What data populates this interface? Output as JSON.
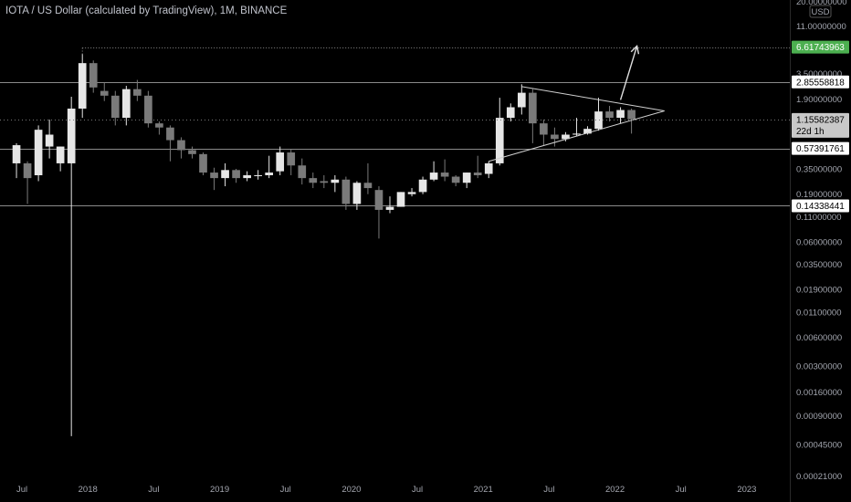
{
  "header": {
    "title": "IOTA / US Dollar (calculated by TradingView), 1M, BINANCE",
    "currency_badge": "USD"
  },
  "colors": {
    "background": "#000000",
    "candle_up": "#e6e6e6",
    "candle_down": "#7a7a7a",
    "level_line": "#8a8a8a",
    "target_tag": "#4caf50",
    "current_tag": "#c8c8c8"
  },
  "chart_data": {
    "type": "candlestick",
    "y_scale": "log",
    "ylim": [
      0.00021,
      20.0
    ],
    "y_ticks": [
      "20.00000000",
      "11.00000000",
      "6.60000000",
      "3.50000000",
      "1.90000000",
      "0.60000000",
      "0.35000000",
      "0.19000000",
      "0.11000000",
      "0.06000000",
      "0.03500000",
      "0.01900000",
      "0.01100000",
      "0.00600000",
      "0.00300000",
      "0.00160000",
      "0.00090000",
      "0.00045000",
      "0.00021000"
    ],
    "x_ticks": [
      "Jul",
      "2018",
      "Jul",
      "2019",
      "Jul",
      "2020",
      "Jul",
      "2021",
      "Jul",
      "2022",
      "Jul",
      "2023"
    ],
    "x_tick_dates": [
      "2017-07",
      "2018-01",
      "2018-07",
      "2019-01",
      "2019-07",
      "2020-01",
      "2020-07",
      "2021-01",
      "2021-07",
      "2022-01",
      "2022-07",
      "2023-01"
    ],
    "x_range": [
      "2017-05",
      "2023-04"
    ],
    "candles": [
      {
        "date": "2017-06",
        "o": 0.4,
        "h": 0.65,
        "l": 0.28,
        "c": 0.62
      },
      {
        "date": "2017-07",
        "o": 0.4,
        "h": 0.42,
        "l": 0.15,
        "c": 0.28
      },
      {
        "date": "2017-08",
        "o": 0.3,
        "h": 1.0,
        "l": 0.26,
        "c": 0.9
      },
      {
        "date": "2017-09",
        "o": 0.6,
        "h": 1.15,
        "l": 0.45,
        "c": 0.8
      },
      {
        "date": "2017-10",
        "o": 0.4,
        "h": 0.6,
        "l": 0.33,
        "c": 0.6
      },
      {
        "date": "2017-11",
        "o": 0.4,
        "h": 2.0,
        "l": 0.00055,
        "c": 1.5
      },
      {
        "date": "2017-12",
        "o": 1.5,
        "h": 5.6,
        "l": 1.2,
        "c": 4.5
      },
      {
        "date": "2018-01",
        "o": 4.5,
        "h": 4.8,
        "l": 2.2,
        "c": 2.5
      },
      {
        "date": "2018-02",
        "o": 2.3,
        "h": 2.8,
        "l": 1.8,
        "c": 2.05
      },
      {
        "date": "2018-03",
        "o": 2.05,
        "h": 2.3,
        "l": 1.0,
        "c": 1.2
      },
      {
        "date": "2018-04",
        "o": 1.2,
        "h": 2.6,
        "l": 1.0,
        "c": 2.4
      },
      {
        "date": "2018-05",
        "o": 2.4,
        "h": 3.0,
        "l": 1.8,
        "c": 2.05
      },
      {
        "date": "2018-06",
        "o": 2.05,
        "h": 2.3,
        "l": 0.95,
        "c": 1.05
      },
      {
        "date": "2018-07",
        "o": 1.05,
        "h": 1.1,
        "l": 0.8,
        "c": 0.95
      },
      {
        "date": "2018-08",
        "o": 0.95,
        "h": 1.0,
        "l": 0.42,
        "c": 0.7
      },
      {
        "date": "2018-09",
        "o": 0.7,
        "h": 0.75,
        "l": 0.45,
        "c": 0.55
      },
      {
        "date": "2018-10",
        "o": 0.55,
        "h": 0.6,
        "l": 0.45,
        "c": 0.5
      },
      {
        "date": "2018-11",
        "o": 0.5,
        "h": 0.52,
        "l": 0.3,
        "c": 0.32
      },
      {
        "date": "2018-12",
        "o": 0.32,
        "h": 0.36,
        "l": 0.21,
        "c": 0.28
      },
      {
        "date": "2019-01",
        "o": 0.28,
        "h": 0.4,
        "l": 0.23,
        "c": 0.34
      },
      {
        "date": "2019-02",
        "o": 0.34,
        "h": 0.35,
        "l": 0.25,
        "c": 0.28
      },
      {
        "date": "2019-03",
        "o": 0.28,
        "h": 0.33,
        "l": 0.26,
        "c": 0.3
      },
      {
        "date": "2019-04",
        "o": 0.3,
        "h": 0.34,
        "l": 0.27,
        "c": 0.3
      },
      {
        "date": "2019-05",
        "o": 0.3,
        "h": 0.48,
        "l": 0.28,
        "c": 0.32
      },
      {
        "date": "2019-06",
        "o": 0.33,
        "h": 0.6,
        "l": 0.3,
        "c": 0.52
      },
      {
        "date": "2019-07",
        "o": 0.52,
        "h": 0.56,
        "l": 0.3,
        "c": 0.38
      },
      {
        "date": "2019-08",
        "o": 0.38,
        "h": 0.45,
        "l": 0.24,
        "c": 0.28
      },
      {
        "date": "2019-09",
        "o": 0.28,
        "h": 0.32,
        "l": 0.22,
        "c": 0.25
      },
      {
        "date": "2019-10",
        "o": 0.26,
        "h": 0.3,
        "l": 0.22,
        "c": 0.25
      },
      {
        "date": "2019-11",
        "o": 0.25,
        "h": 0.3,
        "l": 0.2,
        "c": 0.27
      },
      {
        "date": "2019-12",
        "o": 0.27,
        "h": 0.29,
        "l": 0.13,
        "c": 0.15
      },
      {
        "date": "2020-01",
        "o": 0.15,
        "h": 0.26,
        "l": 0.13,
        "c": 0.25
      },
      {
        "date": "2020-02",
        "o": 0.25,
        "h": 0.4,
        "l": 0.19,
        "c": 0.22
      },
      {
        "date": "2020-03",
        "o": 0.21,
        "h": 0.23,
        "l": 0.065,
        "c": 0.13
      },
      {
        "date": "2020-04",
        "o": 0.13,
        "h": 0.18,
        "l": 0.12,
        "c": 0.14
      },
      {
        "date": "2020-05",
        "o": 0.14,
        "h": 0.2,
        "l": 0.14,
        "c": 0.2
      },
      {
        "date": "2020-06",
        "o": 0.19,
        "h": 0.22,
        "l": 0.18,
        "c": 0.2
      },
      {
        "date": "2020-07",
        "o": 0.2,
        "h": 0.29,
        "l": 0.19,
        "c": 0.27
      },
      {
        "date": "2020-08",
        "o": 0.27,
        "h": 0.42,
        "l": 0.26,
        "c": 0.32
      },
      {
        "date": "2020-09",
        "o": 0.32,
        "h": 0.44,
        "l": 0.26,
        "c": 0.29
      },
      {
        "date": "2020-10",
        "o": 0.29,
        "h": 0.3,
        "l": 0.23,
        "c": 0.25
      },
      {
        "date": "2020-11",
        "o": 0.25,
        "h": 0.32,
        "l": 0.22,
        "c": 0.32
      },
      {
        "date": "2020-12",
        "o": 0.32,
        "h": 0.48,
        "l": 0.28,
        "c": 0.3
      },
      {
        "date": "2021-01",
        "o": 0.31,
        "h": 0.42,
        "l": 0.28,
        "c": 0.4
      },
      {
        "date": "2021-02",
        "o": 0.4,
        "h": 1.95,
        "l": 0.38,
        "c": 1.2
      },
      {
        "date": "2021-03",
        "o": 1.2,
        "h": 1.7,
        "l": 1.1,
        "c": 1.55
      },
      {
        "date": "2021-04",
        "o": 1.55,
        "h": 2.7,
        "l": 1.3,
        "c": 2.2
      },
      {
        "date": "2021-05",
        "o": 2.2,
        "h": 2.4,
        "l": 0.65,
        "c": 1.05
      },
      {
        "date": "2021-06",
        "o": 1.05,
        "h": 1.15,
        "l": 0.62,
        "c": 0.8
      },
      {
        "date": "2021-07",
        "o": 0.8,
        "h": 0.95,
        "l": 0.6,
        "c": 0.72
      },
      {
        "date": "2021-08",
        "o": 0.72,
        "h": 0.85,
        "l": 0.68,
        "c": 0.8
      },
      {
        "date": "2021-09",
        "o": 0.8,
        "h": 1.2,
        "l": 0.78,
        "c": 0.82
      },
      {
        "date": "2021-10",
        "o": 0.82,
        "h": 0.98,
        "l": 0.8,
        "c": 0.92
      },
      {
        "date": "2021-11",
        "o": 0.92,
        "h": 1.95,
        "l": 0.88,
        "c": 1.4
      },
      {
        "date": "2021-12",
        "o": 1.4,
        "h": 1.6,
        "l": 1.1,
        "c": 1.2
      },
      {
        "date": "2022-01",
        "o": 1.2,
        "h": 1.55,
        "l": 1.05,
        "c": 1.45
      },
      {
        "date": "2022-02",
        "o": 1.45,
        "h": 1.5,
        "l": 0.82,
        "c": 1.16
      }
    ],
    "horizontal_levels": [
      {
        "value": 6.61743963,
        "label": "6.61743963",
        "style": "dotted",
        "from": "2017-12"
      },
      {
        "value": 2.85558818,
        "label": "2.85558818",
        "style": "solid"
      },
      {
        "value": 0.57391761,
        "label": "0.57391761",
        "style": "solid"
      },
      {
        "value": 0.14338441,
        "label": "0.14338441",
        "style": "solid"
      }
    ],
    "current_price": {
      "value": 1.15582387,
      "label": "1.15582387",
      "countdown": "22d 1h"
    },
    "triangle": {
      "upper_start": {
        "date": "2021-04",
        "value": 2.55
      },
      "lower_start": {
        "date": "2021-01",
        "value": 0.42
      },
      "apex": {
        "date": "2022-05",
        "value": 1.42
      }
    },
    "arrow": {
      "from": {
        "date": "2022-01",
        "value": 1.85
      },
      "to": {
        "date": "2022-02",
        "value": 6.8
      }
    }
  }
}
